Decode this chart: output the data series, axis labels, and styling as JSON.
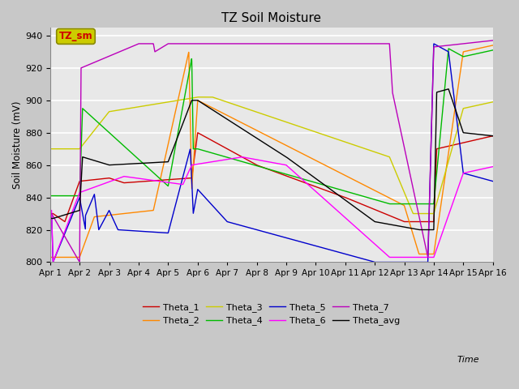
{
  "title": "TZ Soil Moisture",
  "ylabel": "Soil Moisture (mV)",
  "xlabel": "Time",
  "xlim": [
    0,
    15
  ],
  "ylim": [
    800,
    945
  ],
  "yticks": [
    800,
    820,
    840,
    860,
    880,
    900,
    920,
    940
  ],
  "xtick_labels": [
    "Apr 1",
    "Apr 2",
    "Apr 3",
    "Apr 4",
    "Apr 5",
    "Apr 6",
    "Apr 7",
    "Apr 8",
    "Apr 9",
    "Apr 10",
    "Apr 11",
    "Apr 12",
    "Apr 13",
    "Apr 14",
    "Apr 15",
    "Apr 16"
  ],
  "line_colors": {
    "Theta_1": "#cc0000",
    "Theta_2": "#ff8800",
    "Theta_3": "#cccc00",
    "Theta_4": "#00bb00",
    "Theta_5": "#0000cc",
    "Theta_6": "#ff00ff",
    "Theta_7": "#bb00bb",
    "Theta_avg": "#000000"
  },
  "box_label": "TZ_sm",
  "box_color": "#cccc00",
  "box_text_color": "#cc0000"
}
